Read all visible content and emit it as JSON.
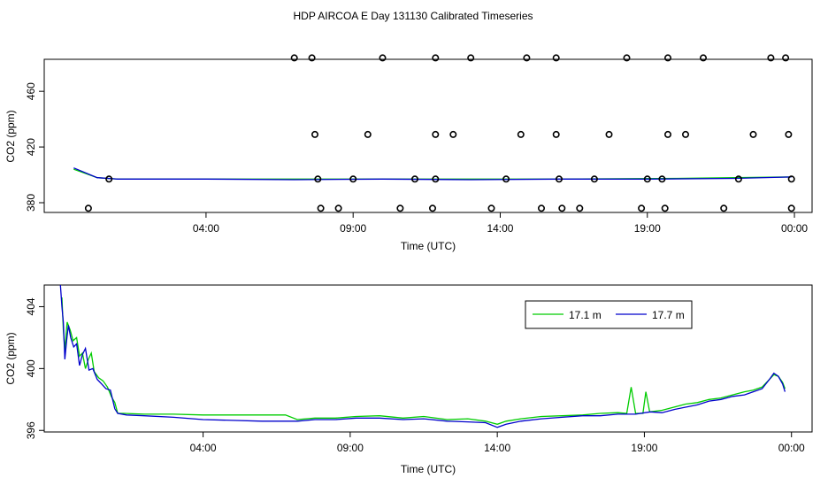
{
  "figure": {
    "title": "HDP AIRCOA E  Day 131130  Calibrated Timeseries"
  },
  "chart_data": [
    {
      "type": "scatter",
      "xlabel": "Time (UTC)",
      "ylabel": "CO2 (ppm)",
      "xlim": [
        -1.5,
        24.6
      ],
      "ylim": [
        373,
        483
      ],
      "xticks": [
        4,
        9,
        14,
        19,
        24
      ],
      "xtick_labels": [
        "04:00",
        "09:00",
        "14:00",
        "19:00",
        "00:00"
      ],
      "yticks": [
        380,
        420,
        460
      ],
      "ytick_labels": [
        "380",
        "420",
        "460"
      ],
      "line_series": [
        {
          "color": "#00cc00",
          "points": [
            [
              -0.5,
              404
            ],
            [
              0.3,
              398
            ],
            [
              1.0,
              397
            ],
            [
              4,
              397
            ],
            [
              8,
              397
            ],
            [
              12,
              397
            ],
            [
              16,
              397
            ],
            [
              20,
              397.5
            ],
            [
              23.9,
              398.5
            ]
          ]
        },
        {
          "color": "#0000cc",
          "points": [
            [
              -0.5,
              405
            ],
            [
              0.3,
              398
            ],
            [
              1.0,
              397
            ],
            [
              4,
              397
            ],
            [
              7,
              396.5
            ],
            [
              10,
              397
            ],
            [
              13,
              396.5
            ],
            [
              16,
              397
            ],
            [
              19,
              397
            ],
            [
              22,
              397.5
            ],
            [
              23.9,
              398.5
            ]
          ]
        }
      ],
      "markers": {
        "x": [
          0.0,
          0.7,
          7.0,
          7.6,
          7.7,
          7.8,
          7.9,
          8.5,
          9.0,
          9.5,
          10.0,
          10.6,
          11.1,
          11.7,
          11.8,
          11.8,
          11.8,
          12.4,
          13.0,
          13.7,
          14.2,
          14.7,
          14.9,
          15.4,
          15.9,
          15.9,
          16.0,
          16.1,
          16.7,
          17.2,
          17.7,
          18.3,
          18.8,
          19.0,
          19.5,
          19.6,
          19.7,
          19.7,
          20.3,
          20.9,
          21.6,
          22.1,
          22.6,
          23.2,
          23.7,
          23.8,
          23.9,
          23.9
        ],
        "y": [
          376,
          397,
          484,
          484,
          429,
          397,
          376,
          376,
          397,
          429,
          484,
          376,
          397,
          376,
          484,
          429,
          397,
          429,
          484,
          376,
          397,
          429,
          484,
          376,
          484,
          429,
          397,
          376,
          376,
          397,
          429,
          484,
          376,
          397,
          397,
          376,
          484,
          429,
          429,
          484,
          376,
          397,
          429,
          484,
          484,
          429,
          397,
          376
        ]
      }
    },
    {
      "type": "line",
      "xlabel": "Time (UTC)",
      "ylabel": "CO2 (ppm)",
      "xlim": [
        -1.4,
        24.7
      ],
      "ylim": [
        395.9,
        405.4
      ],
      "xticks": [
        4,
        9,
        14,
        19,
        24
      ],
      "xtick_labels": [
        "04:00",
        "09:00",
        "14:00",
        "19:00",
        "00:00"
      ],
      "yticks": [
        396,
        400,
        404
      ],
      "ytick_labels": [
        "396",
        "400",
        "404"
      ],
      "legend": {
        "position": "top-right",
        "entries": [
          "17.1 m",
          "17.7 m"
        ]
      },
      "series": [
        {
          "name": "17.1 m",
          "color": "#00cc00",
          "points": [
            [
              -0.8,
              404.6
            ],
            [
              -0.75,
              402.5
            ],
            [
              -0.7,
              401.2
            ],
            [
              -0.62,
              403.0
            ],
            [
              -0.52,
              402.5
            ],
            [
              -0.42,
              401.8
            ],
            [
              -0.3,
              402.0
            ],
            [
              -0.2,
              400.8
            ],
            [
              -0.1,
              401.0
            ],
            [
              0.0,
              400.0
            ],
            [
              0.1,
              400.6
            ],
            [
              0.2,
              401.0
            ],
            [
              0.3,
              399.8
            ],
            [
              0.45,
              399.4
            ],
            [
              0.6,
              399.2
            ],
            [
              0.75,
              398.8
            ],
            [
              0.88,
              398.2
            ],
            [
              1.0,
              397.8
            ],
            [
              1.1,
              397.1
            ],
            [
              1.3,
              397.1
            ],
            [
              2,
              397.05
            ],
            [
              3,
              397.05
            ],
            [
              4,
              397.0
            ],
            [
              5,
              397.0
            ],
            [
              6,
              397.0
            ],
            [
              6.8,
              397.0
            ],
            [
              7.2,
              396.7
            ],
            [
              7.8,
              396.8
            ],
            [
              8.5,
              396.8
            ],
            [
              9.2,
              396.9
            ],
            [
              10.0,
              396.95
            ],
            [
              10.8,
              396.8
            ],
            [
              11.5,
              396.9
            ],
            [
              12.3,
              396.7
            ],
            [
              13.0,
              396.75
            ],
            [
              13.6,
              396.6
            ],
            [
              14.0,
              396.4
            ],
            [
              14.3,
              396.6
            ],
            [
              14.8,
              396.75
            ],
            [
              15.5,
              396.9
            ],
            [
              16.2,
              396.95
            ],
            [
              16.9,
              397.0
            ],
            [
              17.5,
              397.1
            ],
            [
              18.1,
              397.15
            ],
            [
              18.4,
              397.1
            ],
            [
              18.55,
              398.8
            ],
            [
              18.7,
              397.1
            ],
            [
              18.95,
              397.1
            ],
            [
              19.05,
              398.5
            ],
            [
              19.18,
              397.2
            ],
            [
              19.6,
              397.3
            ],
            [
              20.0,
              397.5
            ],
            [
              20.4,
              397.7
            ],
            [
              20.8,
              397.8
            ],
            [
              21.2,
              398.0
            ],
            [
              21.6,
              398.1
            ],
            [
              22.0,
              398.3
            ],
            [
              22.4,
              398.5
            ],
            [
              22.7,
              398.6
            ],
            [
              23.0,
              398.8
            ],
            [
              23.25,
              399.3
            ],
            [
              23.4,
              399.6
            ],
            [
              23.55,
              399.5
            ],
            [
              23.7,
              399.1
            ],
            [
              23.78,
              398.7
            ]
          ]
        },
        {
          "name": "17.7 m",
          "color": "#0000cc",
          "points": [
            [
              -0.85,
              405.4
            ],
            [
              -0.8,
              404.0
            ],
            [
              -0.75,
              403.0
            ],
            [
              -0.7,
              400.6
            ],
            [
              -0.64,
              401.8
            ],
            [
              -0.58,
              402.8
            ],
            [
              -0.5,
              402.0
            ],
            [
              -0.4,
              401.4
            ],
            [
              -0.3,
              401.6
            ],
            [
              -0.2,
              400.2
            ],
            [
              -0.1,
              400.9
            ],
            [
              0.0,
              401.3
            ],
            [
              0.12,
              399.9
            ],
            [
              0.25,
              400.0
            ],
            [
              0.4,
              399.3
            ],
            [
              0.55,
              399.0
            ],
            [
              0.7,
              398.7
            ],
            [
              0.85,
              398.6
            ],
            [
              1.0,
              397.4
            ],
            [
              1.1,
              397.1
            ],
            [
              1.4,
              397.0
            ],
            [
              2,
              396.95
            ],
            [
              3,
              396.85
            ],
            [
              4,
              396.7
            ],
            [
              5,
              396.65
            ],
            [
              6,
              396.6
            ],
            [
              6.8,
              396.6
            ],
            [
              7.2,
              396.6
            ],
            [
              7.8,
              396.7
            ],
            [
              8.5,
              396.7
            ],
            [
              9.2,
              396.8
            ],
            [
              10.0,
              396.8
            ],
            [
              10.8,
              396.7
            ],
            [
              11.5,
              396.75
            ],
            [
              12.3,
              396.6
            ],
            [
              13.0,
              396.55
            ],
            [
              13.6,
              396.5
            ],
            [
              14.0,
              396.2
            ],
            [
              14.3,
              396.4
            ],
            [
              14.8,
              396.6
            ],
            [
              15.5,
              396.75
            ],
            [
              16.2,
              396.85
            ],
            [
              16.9,
              396.95
            ],
            [
              17.5,
              396.95
            ],
            [
              18.1,
              397.05
            ],
            [
              18.7,
              397.05
            ],
            [
              19.2,
              397.2
            ],
            [
              19.6,
              397.15
            ],
            [
              20.0,
              397.35
            ],
            [
              20.4,
              397.5
            ],
            [
              20.8,
              397.65
            ],
            [
              21.2,
              397.9
            ],
            [
              21.6,
              398.0
            ],
            [
              22.0,
              398.2
            ],
            [
              22.4,
              398.3
            ],
            [
              22.7,
              398.5
            ],
            [
              23.0,
              398.7
            ],
            [
              23.25,
              399.3
            ],
            [
              23.4,
              399.7
            ],
            [
              23.55,
              399.5
            ],
            [
              23.7,
              399.0
            ],
            [
              23.78,
              398.5
            ]
          ]
        }
      ]
    }
  ]
}
